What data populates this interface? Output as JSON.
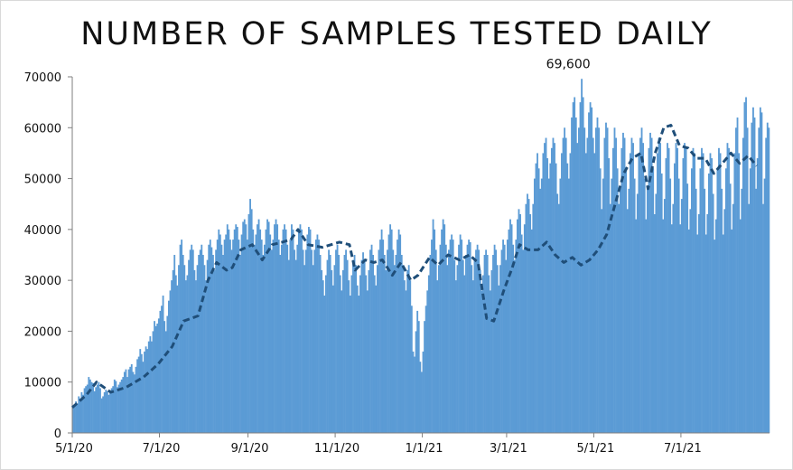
{
  "title": "NUMBER OF SAMPLES TESTED DAILY",
  "colors": {
    "bars": "#5b9bd5",
    "moving_average": "#1f4e79",
    "axis": "#7f7f7f"
  },
  "chart_data": {
    "type": "bar",
    "title": "NUMBER OF SAMPLES TESTED DAILY",
    "xlabel": "",
    "ylabel": "",
    "x_range": [
      "2020-05-01",
      "2021-08-31"
    ],
    "ylim": [
      0,
      70000
    ],
    "y_ticks": [
      0,
      10000,
      20000,
      30000,
      40000,
      50000,
      60000,
      70000
    ],
    "x_ticks": [
      {
        "date": "2020-05-01",
        "label": "5/1/20"
      },
      {
        "date": "2020-07-01",
        "label": "7/1/20"
      },
      {
        "date": "2020-09-01",
        "label": "9/1/20"
      },
      {
        "date": "2020-11-01",
        "label": "11/1/20"
      },
      {
        "date": "2021-01-01",
        "label": "1/1/21"
      },
      {
        "date": "2021-03-01",
        "label": "3/1/21"
      },
      {
        "date": "2021-05-01",
        "label": "5/1/21"
      },
      {
        "date": "2021-07-01",
        "label": "7/1/21"
      }
    ],
    "grid": false,
    "legend": "none",
    "series": [
      {
        "type": "bar",
        "values_by_month": [
          {
            "month": "2020-05",
            "values": [
              5000,
              5500,
              6200,
              5800,
              7200,
              6800,
              8000,
              7500,
              8800,
              9200,
              9500,
              11000,
              10500,
              10000,
              9800,
              8200,
              9000,
              9500,
              10000,
              8800,
              6800,
              7200,
              8000,
              8500,
              8200,
              7500,
              8000,
              8800,
              9200,
              10500,
              10200
            ]
          },
          {
            "month": "2020-06",
            "values": [
              9000,
              9500,
              10000,
              10500,
              11000,
              12000,
              12500,
              11000,
              12500,
              13000,
              13500,
              12000,
              11500,
              13000,
              14500,
              15000,
              16500,
              15500,
              14000,
              16000,
              17000,
              16500,
              18000,
              19000,
              18000,
              20000,
              22000,
              21000,
              21500,
              22500
            ]
          },
          {
            "month": "2020-07",
            "values": [
              24000,
              25000,
              27000,
              22000,
              20000,
              23000,
              26000,
              28000,
              30000,
              32000,
              35000,
              31000,
              29000,
              33000,
              37000,
              38000,
              35000,
              33000,
              30000,
              31000,
              34000,
              36000,
              37000,
              36000,
              32000,
              30000,
              33000,
              35000,
              36000,
              37000,
              35000
            ]
          },
          {
            "month": "2020-08",
            "values": [
              33000,
              30000,
              34000,
              37000,
              38000,
              36500,
              35000,
              32000,
              36000,
              38000,
              40000,
              39000,
              37000,
              35000,
              38000,
              39000,
              41000,
              40000,
              38000,
              36000,
              38000,
              40000,
              41000,
              40500,
              38000,
              35000,
              39000,
              41500,
              42000,
              41000,
              38000
            ]
          },
          {
            "month": "2020-09",
            "values": [
              43000,
              46000,
              44000,
              40000,
              37000,
              39000,
              41000,
              42000,
              40000,
              38000,
              35000,
              37000,
              40000,
              42000,
              41500,
              39000,
              36000,
              38000,
              41000,
              42000,
              41000,
              38000,
              35000,
              37000,
              40000,
              41000,
              40000,
              37000,
              34000,
              38000
            ]
          },
          {
            "month": "2020-10",
            "values": [
              41000,
              40000,
              36000,
              34000,
              37000,
              40000,
              41000,
              40000,
              36000,
              33000,
              36000,
              39000,
              40500,
              40000,
              36000,
              33000,
              36000,
              38000,
              39000,
              38000,
              35000,
              32000,
              30000,
              27000,
              31000,
              34000,
              36000,
              35000,
              32000,
              29000,
              33000
            ]
          },
          {
            "month": "2020-11",
            "values": [
              36000,
              37000,
              35000,
              31000,
              28000,
              32000,
              35000,
              36000,
              34000,
              30000,
              27000,
              31000,
              34000,
              35000,
              33000,
              29000,
              27000,
              31000,
              34000,
              35500,
              34000,
              31000,
              28000,
              32000,
              36000,
              37000,
              35000,
              31000,
              29000,
              33000
            ]
          },
          {
            "month": "2020-12",
            "values": [
              36000,
              38000,
              40000,
              38000,
              35000,
              32000,
              36000,
              39000,
              41000,
              40000,
              36000,
              33000,
              35000,
              38000,
              40000,
              39000,
              35000,
              33000,
              30000,
              28000,
              32000,
              33000,
              30000,
              25000,
              16000,
              15000,
              20000,
              24000,
              22000,
              14000,
              12000
            ]
          },
          {
            "month": "2021-01",
            "values": [
              16000,
              22000,
              25000,
              28000,
              31000,
              35000,
              38000,
              42000,
              40000,
              36000,
              30000,
              33000,
              37000,
              40000,
              42000,
              41000,
              37000,
              33000,
              36000,
              38000,
              39000,
              38000,
              34000,
              30000,
              33000,
              37000,
              39000,
              38000,
              34000,
              31000,
              35000
            ]
          },
          {
            "month": "2021-02",
            "values": [
              37000,
              38000,
              37500,
              33000,
              30000,
              34000,
              36000,
              37000,
              36000,
              32000,
              28000,
              31000,
              35000,
              36000,
              35000,
              31000,
              28000,
              32000,
              35000,
              37000,
              36000,
              33000,
              29000,
              33000,
              36000,
              38000,
              37000,
              34000
            ]
          },
          {
            "month": "2021-03",
            "values": [
              38000,
              40000,
              42000,
              41000,
              37000,
              34000,
              38000,
              42000,
              44000,
              43000,
              39000,
              36000,
              41000,
              45000,
              47000,
              46000,
              43000,
              40000,
              45000,
              50000,
              53000,
              55000,
              52000,
              48000,
              50000,
              55000,
              57000,
              58000,
              54000,
              50000,
              53000
            ]
          },
          {
            "month": "2021-04",
            "values": [
              56000,
              58000,
              57000,
              53000,
              47000,
              45000,
              50000,
              55000,
              58000,
              60000,
              58000,
              53000,
              50000,
              55000,
              62000,
              65000,
              66000,
              62000,
              57000,
              60000,
              65000,
              69600,
              66000,
              60000,
              55000,
              58000,
              63000,
              65000,
              64000,
              58000
            ]
          },
          {
            "month": "2021-05",
            "values": [
              55000,
              60000,
              62000,
              60000,
              52000,
              44000,
              50000,
              58000,
              61000,
              60000,
              54000,
              45000,
              50000,
              56000,
              60000,
              58000,
              52000,
              45000,
              48000,
              56000,
              59000,
              58000,
              52000,
              44000,
              48000,
              55000,
              58000,
              57000,
              50000,
              42000,
              47000
            ]
          },
          {
            "month": "2021-06",
            "values": [
              55000,
              58000,
              60000,
              57000,
              50000,
              42000,
              48000,
              56000,
              59000,
              58000,
              52000,
              43000,
              47000,
              55000,
              58000,
              57000,
              51000,
              42000,
              46000,
              54000,
              57000,
              56000,
              50000,
              41000,
              45000,
              53000,
              57000,
              56000,
              50000,
              41000
            ]
          },
          {
            "month": "2021-07",
            "values": [
              46000,
              54000,
              57000,
              56000,
              49000,
              40000,
              44000,
              52000,
              56000,
              55000,
              48000,
              39000,
              43000,
              52000,
              56000,
              55000,
              48000,
              39000,
              43000,
              51000,
              55000,
              54000,
              47000,
              38000,
              42000,
              52000,
              56000,
              55000,
              48000,
              39000,
              44000
            ]
          },
          {
            "month": "2021-08",
            "values": [
              52000,
              57000,
              56000,
              49000,
              40000,
              45000,
              55000,
              60000,
              62000,
              55000,
              42000,
              48000,
              58000,
              65000,
              66000,
              60000,
              45000,
              52000,
              61000,
              64000,
              62000,
              48000,
              54000,
              60000,
              64000,
              63000,
              45000,
              50000,
              58000,
              61000,
              60000
            ]
          }
        ]
      },
      {
        "type": "line",
        "style": "dashed",
        "points": [
          [
            "2020-05-01",
            5000
          ],
          [
            "2020-05-11",
            7500
          ],
          [
            "2020-05-18",
            10000
          ],
          [
            "2020-05-28",
            8000
          ],
          [
            "2020-06-08",
            9000
          ],
          [
            "2020-06-20",
            11000
          ],
          [
            "2020-06-30",
            13500
          ],
          [
            "2020-07-10",
            17000
          ],
          [
            "2020-07-18",
            22000
          ],
          [
            "2020-07-28",
            23000
          ],
          [
            "2020-08-04",
            30000
          ],
          [
            "2020-08-10",
            33500
          ],
          [
            "2020-08-17",
            32000
          ],
          [
            "2020-08-21",
            32500
          ],
          [
            "2020-08-27",
            36000
          ],
          [
            "2020-09-04",
            37000
          ],
          [
            "2020-09-11",
            34000
          ],
          [
            "2020-09-18",
            37000
          ],
          [
            "2020-09-25",
            37500
          ],
          [
            "2020-10-01",
            38000
          ],
          [
            "2020-10-06",
            40000
          ],
          [
            "2020-10-13",
            37000
          ],
          [
            "2020-10-23",
            36500
          ],
          [
            "2020-11-04",
            37500
          ],
          [
            "2020-11-11",
            37000
          ],
          [
            "2020-11-15",
            32000
          ],
          [
            "2020-11-22",
            34000
          ],
          [
            "2020-11-28",
            33500
          ],
          [
            "2020-12-04",
            34000
          ],
          [
            "2020-12-11",
            31000
          ],
          [
            "2020-12-17",
            33500
          ],
          [
            "2020-12-24",
            30000
          ],
          [
            "2020-12-29",
            31000
          ],
          [
            "2021-01-06",
            34500
          ],
          [
            "2021-01-12",
            33000
          ],
          [
            "2021-01-19",
            35000
          ],
          [
            "2021-01-27",
            34000
          ],
          [
            "2021-02-03",
            35000
          ],
          [
            "2021-02-09",
            33500
          ],
          [
            "2021-02-15",
            22500
          ],
          [
            "2021-02-20",
            22000
          ],
          [
            "2021-02-27",
            28000
          ],
          [
            "2021-03-05",
            32500
          ],
          [
            "2021-03-10",
            37000
          ],
          [
            "2021-03-16",
            36000
          ],
          [
            "2021-03-23",
            36000
          ],
          [
            "2021-03-29",
            37500
          ],
          [
            "2021-04-04",
            35000
          ],
          [
            "2021-04-10",
            33500
          ],
          [
            "2021-04-16",
            34500
          ],
          [
            "2021-04-22",
            33000
          ],
          [
            "2021-04-28",
            34000
          ],
          [
            "2021-05-04",
            36000
          ],
          [
            "2021-05-10",
            39000
          ],
          [
            "2021-05-16",
            45000
          ],
          [
            "2021-05-22",
            51000
          ],
          [
            "2021-05-28",
            54000
          ],
          [
            "2021-06-03",
            55000
          ],
          [
            "2021-06-08",
            48000
          ],
          [
            "2021-06-13",
            55000
          ],
          [
            "2021-06-19",
            60000
          ],
          [
            "2021-06-24",
            60500
          ],
          [
            "2021-06-30",
            56500
          ],
          [
            "2021-07-06",
            56000
          ],
          [
            "2021-07-12",
            54000
          ],
          [
            "2021-07-18",
            54000
          ],
          [
            "2021-07-24",
            51000
          ],
          [
            "2021-07-30",
            53000
          ],
          [
            "2021-08-05",
            55000
          ],
          [
            "2021-08-11",
            53000
          ],
          [
            "2021-08-17",
            54500
          ],
          [
            "2021-08-23",
            52500
          ]
        ]
      }
    ],
    "annotations": [
      {
        "text": "69,600",
        "value": 69600
      }
    ]
  }
}
